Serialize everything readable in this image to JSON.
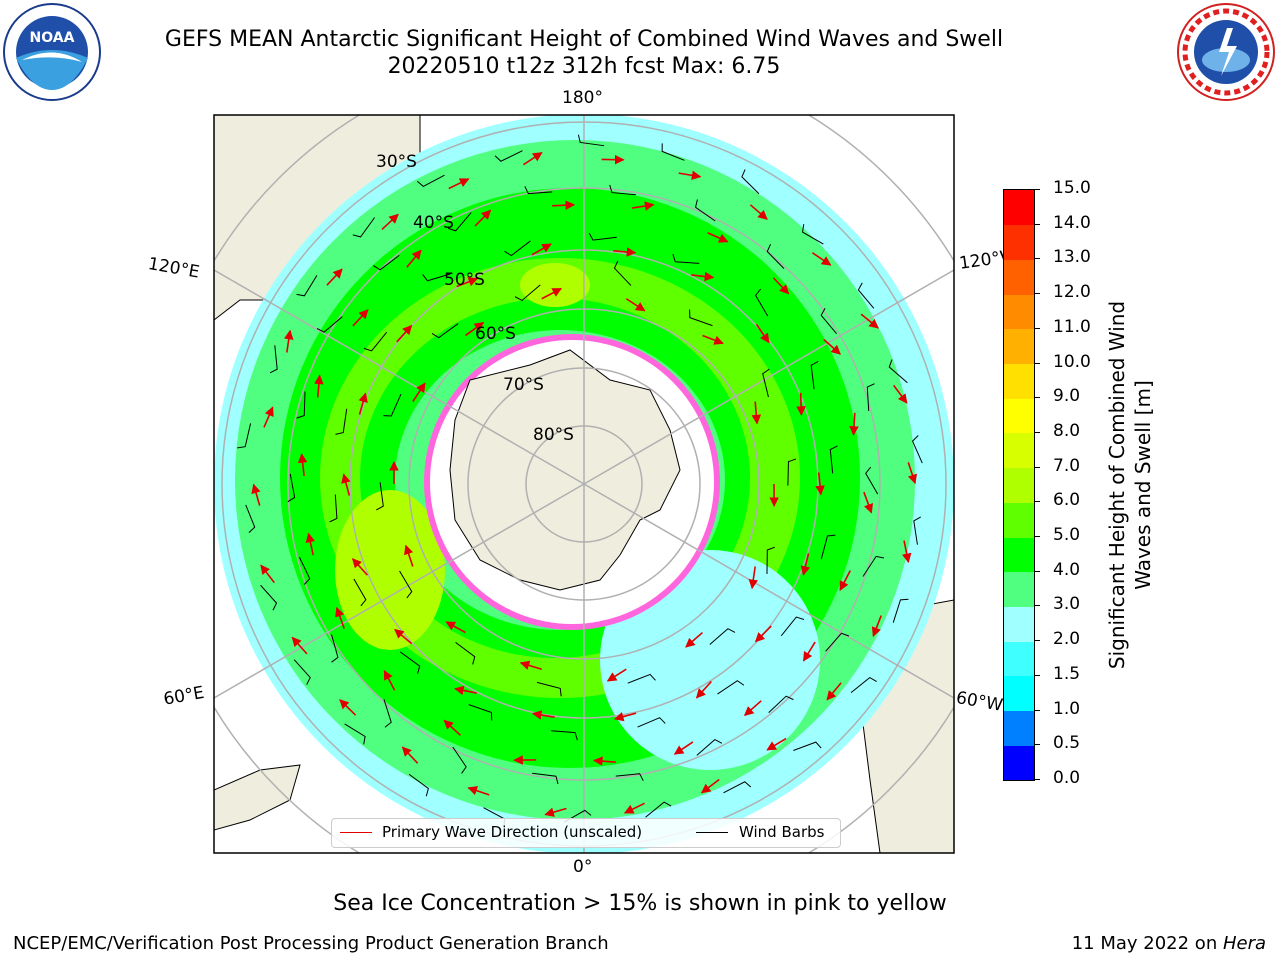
{
  "title": {
    "line1": "GEFS MEAN Antarctic Significant Height of Combined Wind Waves and Swell",
    "line2": "20220510 t12z 312h fcst   Max: 6.75"
  },
  "logos": {
    "left": {
      "icon": "noaa-logo-icon",
      "text": "NOAA"
    },
    "right": {
      "icon": "national-weather-service-logo-icon",
      "text": "NATIONAL WEATHER SERVICE"
    }
  },
  "map": {
    "longitude_labels": {
      "top": "180°",
      "bottom": "0°",
      "left_upper": "120°E",
      "right_upper": "120°W",
      "left_lower": "60°E",
      "right_lower": "60°W"
    },
    "latitude_labels": [
      "30°S",
      "40°S",
      "50°S",
      "60°S",
      "70°S",
      "80°S"
    ],
    "colors": {
      "land": "#efedde",
      "ice": "#ffffff",
      "grid": "#b0b0b0",
      "wave_arrow": "#e00000",
      "wind_barb": "#000000",
      "sea_ice_edge": "#ff33cc"
    }
  },
  "legend": {
    "wave_label": "Primary Wave Direction (unscaled)",
    "barb_label": "Wind Barbs"
  },
  "colorbar": {
    "label": "Significant Height of Combined Wind Waves and Swell [m]",
    "ticks": [
      "15.0",
      "14.0",
      "13.0",
      "12.0",
      "11.0",
      "10.0",
      "9.0",
      "8.0",
      "7.0",
      "6.0",
      "5.0",
      "4.0",
      "3.0",
      "2.0",
      "1.5",
      "1.0",
      "0.5",
      "0.0"
    ],
    "colors_bottom_to_top": [
      "#0000ff",
      "#0080ff",
      "#00ffff",
      "#40ffff",
      "#a0ffff",
      "#50ff80",
      "#00ff00",
      "#60ff00",
      "#b0ff00",
      "#d8ff00",
      "#ffff00",
      "#ffe000",
      "#ffb000",
      "#ff8c00",
      "#ff6000",
      "#ff3000",
      "#ff0000"
    ]
  },
  "notes": {
    "ice": "Sea Ice Concentration > 15% is shown in pink to yellow",
    "footer_left": "NCEP/EMC/Verification Post Processing Product Generation Branch",
    "footer_right_date": "11 May 2022 on ",
    "footer_right_host": "Hera"
  }
}
